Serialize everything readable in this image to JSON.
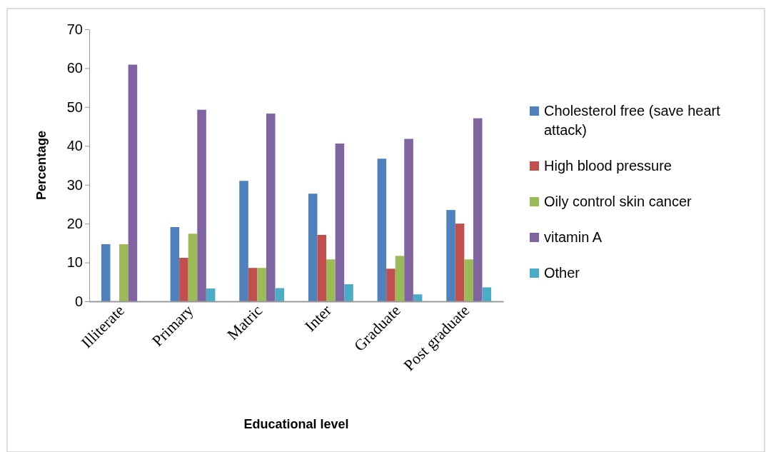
{
  "chart_data": {
    "type": "bar",
    "xlabel": "Educational level",
    "ylabel": "Percentage",
    "categories": [
      "Illiterate",
      "Primary",
      "Matric",
      "Inter",
      "Graduate",
      "Post graduate"
    ],
    "series": [
      {
        "name": "Cholesterol free (save heart attack)",
        "color": "#4f81bd",
        "values": [
          14.7,
          19.1,
          31.0,
          27.7,
          36.7,
          23.5
        ]
      },
      {
        "name": "High blood pressure",
        "color": "#c0504d",
        "values": [
          null,
          11.2,
          8.6,
          17.1,
          8.4,
          20.0
        ]
      },
      {
        "name": "Oily control skin cancer",
        "color": "#9bbb59",
        "values": [
          14.7,
          17.4,
          8.6,
          10.8,
          11.7,
          10.8
        ]
      },
      {
        "name": "vitamin A",
        "color": "#8064a2",
        "values": [
          60.9,
          49.3,
          48.3,
          40.6,
          41.8,
          47.1
        ]
      },
      {
        "name": "Other",
        "color": "#4bacc6",
        "values": [
          null,
          3.3,
          3.4,
          4.4,
          1.8,
          3.6
        ]
      }
    ],
    "ylim": [
      0,
      70
    ],
    "yticks": [
      0,
      10,
      20,
      30,
      40,
      50,
      60,
      70
    ],
    "legend": "right"
  }
}
